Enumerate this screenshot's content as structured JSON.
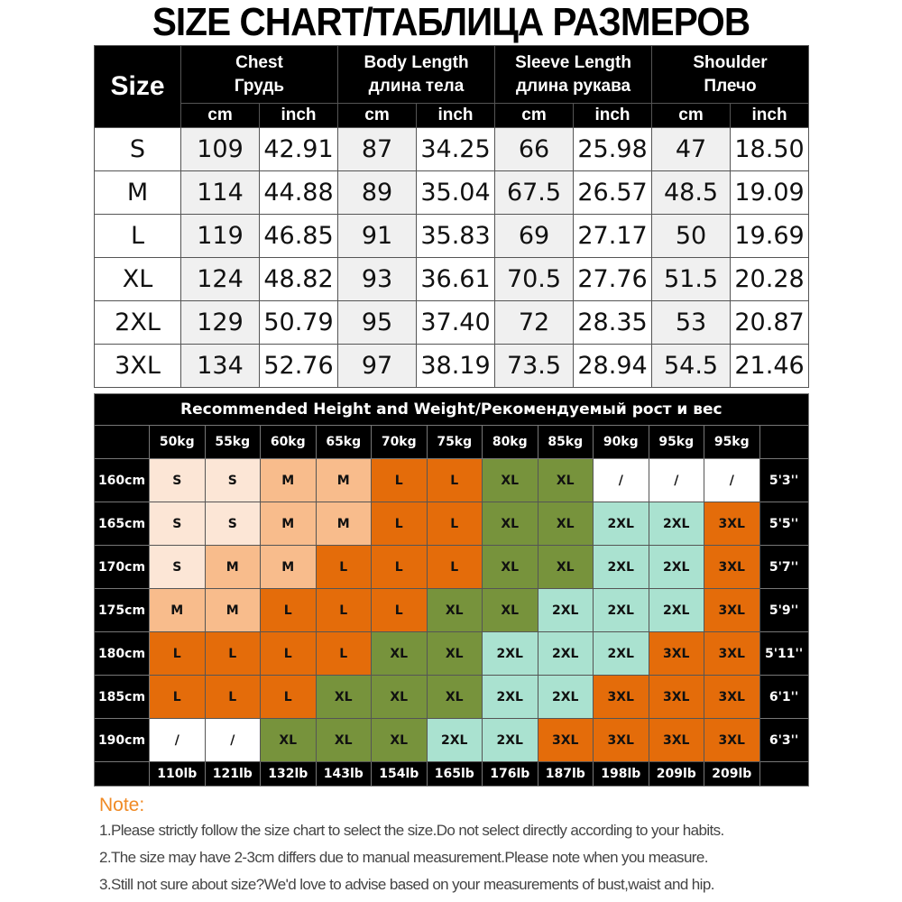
{
  "title": "SIZE CHART/ТАБЛИЦА РАЗМЕРОВ",
  "size_table": {
    "size_header": "Size",
    "groups": [
      {
        "en": "Chest",
        "ru": "Грудь"
      },
      {
        "en": "Body Length",
        "ru": "длина тела"
      },
      {
        "en": "Sleeve Length",
        "ru": "длина рукава"
      },
      {
        "en": "Shoulder",
        "ru": "Плечо"
      }
    ],
    "units": [
      "cm",
      "inch",
      "cm",
      "inch",
      "cm",
      "inch",
      "cm",
      "inch"
    ],
    "rows": [
      {
        "size": "S",
        "values": [
          "109",
          "42.91",
          "87",
          "34.25",
          "66",
          "25.98",
          "47",
          "18.50"
        ]
      },
      {
        "size": "M",
        "values": [
          "114",
          "44.88",
          "89",
          "35.04",
          "67.5",
          "26.57",
          "48.5",
          "19.09"
        ]
      },
      {
        "size": "L",
        "values": [
          "119",
          "46.85",
          "91",
          "35.83",
          "69",
          "27.17",
          "50",
          "19.69"
        ]
      },
      {
        "size": "XL",
        "values": [
          "124",
          "48.82",
          "93",
          "36.61",
          "70.5",
          "27.76",
          "51.5",
          "20.28"
        ]
      },
      {
        "size": "2XL",
        "values": [
          "129",
          "50.79",
          "95",
          "37.40",
          "72",
          "28.35",
          "53",
          "20.87"
        ]
      },
      {
        "size": "3XL",
        "values": [
          "134",
          "52.76",
          "97",
          "38.19",
          "73.5",
          "28.94",
          "54.5",
          "21.46"
        ]
      }
    ]
  },
  "rec_table": {
    "title": "Recommended Height and Weight/Рекомендуемый рост и вес",
    "weights_kg": [
      "50kg",
      "55kg",
      "60kg",
      "65kg",
      "70kg",
      "75kg",
      "80kg",
      "85kg",
      "90kg",
      "95kg",
      "95kg"
    ],
    "weights_lb": [
      "110lb",
      "121lb",
      "132lb",
      "143lb",
      "154lb",
      "165lb",
      "176lb",
      "187lb",
      "198lb",
      "209lb",
      "209lb"
    ],
    "rows": [
      {
        "height_cm": "160cm",
        "height_ft": "5'3''",
        "sizes": [
          "S",
          "S",
          "M",
          "M",
          "L",
          "L",
          "XL",
          "XL",
          "/",
          "/",
          "/"
        ]
      },
      {
        "height_cm": "165cm",
        "height_ft": "5'5''",
        "sizes": [
          "S",
          "S",
          "M",
          "M",
          "L",
          "L",
          "XL",
          "XL",
          "2XL",
          "2XL",
          "3XL"
        ]
      },
      {
        "height_cm": "170cm",
        "height_ft": "5'7''",
        "sizes": [
          "S",
          "M",
          "M",
          "L",
          "L",
          "L",
          "XL",
          "XL",
          "2XL",
          "2XL",
          "3XL"
        ]
      },
      {
        "height_cm": "175cm",
        "height_ft": "5'9''",
        "sizes": [
          "M",
          "M",
          "L",
          "L",
          "L",
          "XL",
          "XL",
          "2XL",
          "2XL",
          "2XL",
          "3XL"
        ]
      },
      {
        "height_cm": "180cm",
        "height_ft": "5'11''",
        "sizes": [
          "L",
          "L",
          "L",
          "L",
          "XL",
          "XL",
          "2XL",
          "2XL",
          "2XL",
          "3XL",
          "3XL"
        ]
      },
      {
        "height_cm": "185cm",
        "height_ft": "6'1''",
        "sizes": [
          "L",
          "L",
          "L",
          "XL",
          "XL",
          "XL",
          "2XL",
          "2XL",
          "3XL",
          "3XL",
          "3XL"
        ]
      },
      {
        "height_cm": "190cm",
        "height_ft": "6'3''",
        "sizes": [
          "/",
          "/",
          "XL",
          "XL",
          "XL",
          "2XL",
          "2XL",
          "3XL",
          "3XL",
          "3XL",
          "3XL"
        ]
      }
    ],
    "colors": {
      "S": "#fce6d6",
      "M": "#f8bc8c",
      "L": "#e46c0a",
      "XL": "#77933c",
      "2XL": "#aae2d0",
      "3XL": "#e46c0a",
      "/": "#ffffff"
    }
  },
  "notes": {
    "label": "Note:",
    "lines": [
      "1.Please strictly follow the size chart to select the size.Do not select directly according to your habits.",
      "2.The size may have 2-3cm differs due to manual measurement.Please note when you measure.",
      "3.Still not sure about size?We'd love to advise based on your measurements of bust,waist and hip."
    ]
  }
}
